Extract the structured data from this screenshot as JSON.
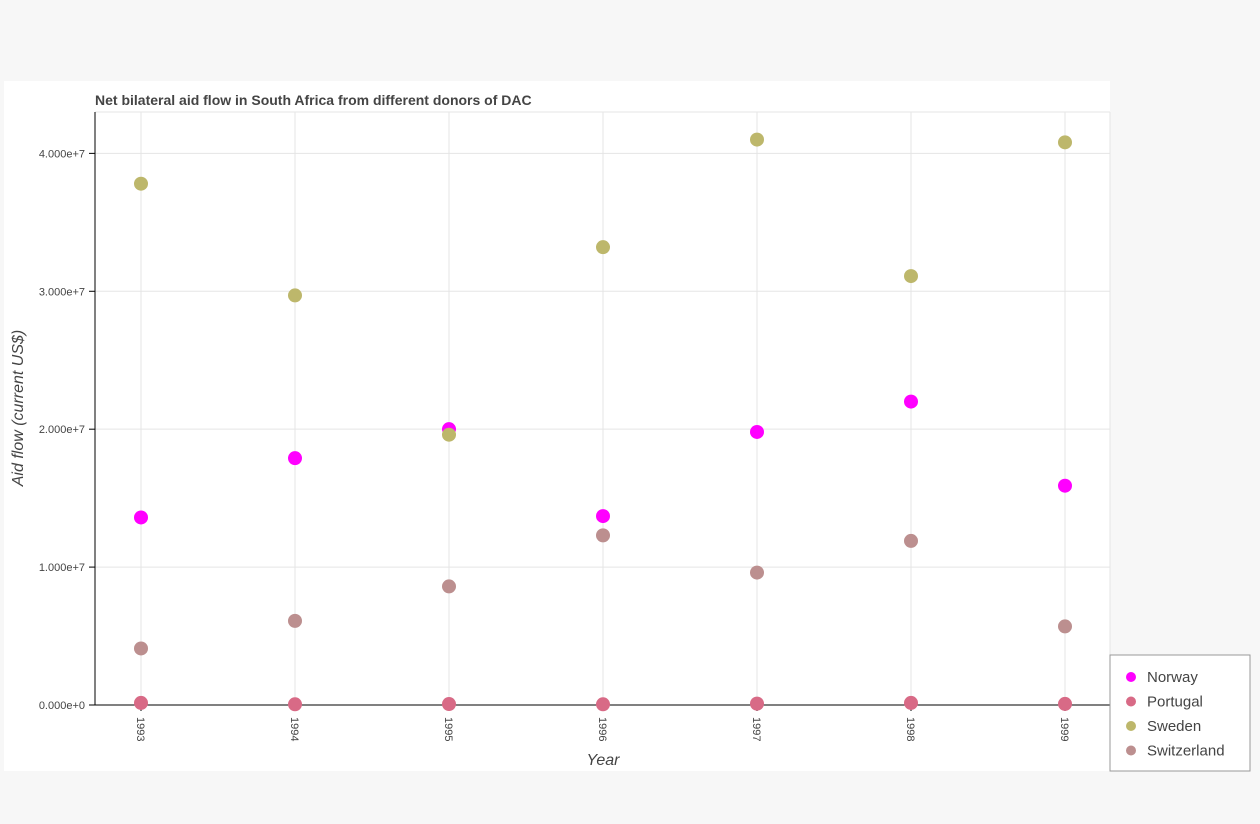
{
  "chart_data": {
    "type": "scatter",
    "title": "Net bilateral aid flow in South Africa from different donors of DAC",
    "xlabel": "Year",
    "ylabel": "Aid flow (current US$)",
    "x": [
      "1993",
      "1994",
      "1995",
      "1996",
      "1997",
      "1998",
      "1999"
    ],
    "ylim": [
      0,
      43000000
    ],
    "y_ticks": [
      0,
      10000000,
      20000000,
      30000000,
      40000000
    ],
    "y_tick_labels": [
      "0.000e+0",
      "1.000e+7",
      "2.000e+7",
      "3.000e+7",
      "4.000e+7"
    ],
    "grid": true,
    "legend_position": "bottom-right, outside plot",
    "series": [
      {
        "name": "Norway",
        "color": "#ff00ff",
        "values": [
          13600000,
          17900000,
          20000000,
          13700000,
          19800000,
          22000000,
          15900000
        ]
      },
      {
        "name": "Portugal",
        "color": "#d86a86",
        "values": [
          150000,
          50000,
          70000,
          50000,
          100000,
          150000,
          80000
        ]
      },
      {
        "name": "Sweden",
        "color": "#bdb76b",
        "values": [
          37800000,
          29700000,
          19600000,
          33200000,
          41000000,
          31100000,
          40800000
        ]
      },
      {
        "name": "Switzerland",
        "color": "#bc8f8f",
        "values": [
          4100000,
          6100000,
          8600000,
          12300000,
          9600000,
          11900000,
          5700000
        ]
      }
    ]
  }
}
